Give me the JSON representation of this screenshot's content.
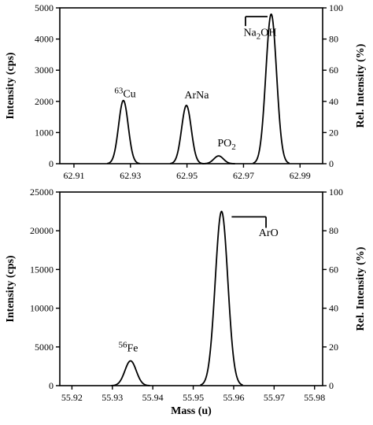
{
  "chart_data": [
    {
      "type": "line",
      "xlabel": "",
      "ylabel": "Intensity (cps)",
      "y2label": "Rel. Intensity (%)",
      "xlim": [
        62.905,
        62.998
      ],
      "ylim": [
        0,
        5000
      ],
      "y2lim": [
        0,
        100
      ],
      "xticks": [
        62.91,
        62.93,
        62.95,
        62.97,
        62.99
      ],
      "yticks": [
        0,
        1000,
        2000,
        3000,
        4000,
        5000
      ],
      "y2ticks": [
        0,
        20,
        40,
        60,
        80,
        100
      ],
      "grid": false,
      "legend": "none",
      "peaks": [
        {
          "center": 62.9275,
          "height": 2030,
          "width": 0.0017
        },
        {
          "center": 62.9498,
          "height": 1870,
          "width": 0.0017
        },
        {
          "center": 62.9612,
          "height": 250,
          "width": 0.0017
        },
        {
          "center": 62.9798,
          "height": 4800,
          "width": 0.0019
        }
      ],
      "annotations": [
        {
          "sup": "63",
          "text": "Cu",
          "x": 62.9243,
          "y": 2140
        },
        {
          "text": "ArNa",
          "x": 62.9491,
          "y": 2090
        },
        {
          "text": "PO",
          "sub": "2",
          "x": 62.9608,
          "y": 560
        },
        {
          "text": "Na",
          "sub": "2",
          "text2": "OH",
          "x": 62.97,
          "y": 4100
        }
      ],
      "bracket": {
        "x0": 62.9707,
        "x1": 62.9785,
        "y": 4720
      }
    },
    {
      "type": "line",
      "xlabel": "Mass (u)",
      "ylabel": "Intensity (cps)",
      "y2label": "Rel. Intensity (%)",
      "xlim": [
        55.917,
        55.982
      ],
      "ylim": [
        0,
        25000
      ],
      "y2lim": [
        0,
        100
      ],
      "xticks": [
        55.92,
        55.93,
        55.94,
        55.95,
        55.96,
        55.97,
        55.98
      ],
      "yticks": [
        0,
        5000,
        10000,
        15000,
        20000,
        25000
      ],
      "y2ticks": [
        0,
        20,
        40,
        60,
        80,
        100
      ],
      "grid": false,
      "legend": "none",
      "peaks": [
        {
          "center": 55.9345,
          "height": 3200,
          "width": 0.0014
        },
        {
          "center": 55.957,
          "height": 22500,
          "width": 0.00155
        }
      ],
      "annotations": [
        {
          "sup": "56",
          "text": "Fe",
          "x": 55.9315,
          "y": 4400
        },
        {
          "text": "ArO",
          "x": 55.9662,
          "y": 19300
        }
      ],
      "bracket": {
        "x0": 55.9595,
        "x1": 55.968,
        "y": 21800
      }
    }
  ]
}
